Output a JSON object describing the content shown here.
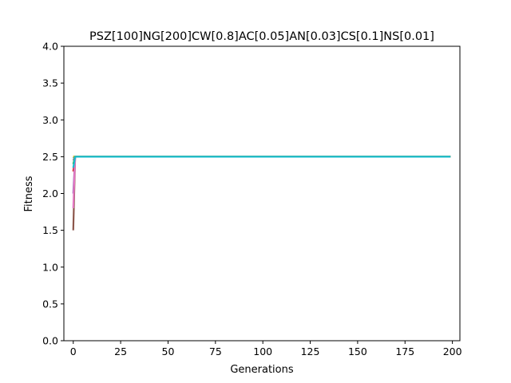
{
  "chart_data": {
    "type": "line",
    "title": "PSZ[100]NG[200]CW[0.8]AC[0.05]AN[0.03]CS[0.1]NS[0.01]",
    "xlabel": "Generations",
    "ylabel": "Fitness",
    "xlim": [
      -4.95,
      203.95
    ],
    "ylim": [
      0,
      4.0
    ],
    "xticks": [
      0,
      25,
      50,
      75,
      100,
      125,
      150,
      175,
      200
    ],
    "yticks": [
      0.0,
      0.5,
      1.0,
      1.5,
      2.0,
      2.5,
      3.0,
      3.5,
      4.0
    ],
    "xtick_labels": [
      "0",
      "25",
      "50",
      "75",
      "100",
      "125",
      "150",
      "175",
      "200"
    ],
    "ytick_labels": [
      "0.0",
      "0.5",
      "1.0",
      "1.5",
      "2.0",
      "2.5",
      "3.0",
      "3.5",
      "4.0"
    ],
    "grid": false,
    "legend": "none",
    "series": [
      {
        "color": "#1f77b4",
        "x": [
          0,
          1,
          199
        ],
        "y": [
          2.48,
          2.5,
          2.5
        ]
      },
      {
        "color": "#ff7f0e",
        "x": [
          0,
          1,
          199
        ],
        "y": [
          2.5,
          2.5,
          2.5
        ]
      },
      {
        "color": "#2ca02c",
        "x": [
          0,
          1,
          199
        ],
        "y": [
          2.4,
          2.5,
          2.5
        ]
      },
      {
        "color": "#d62728",
        "x": [
          0,
          1,
          199
        ],
        "y": [
          2.3,
          2.5,
          2.5
        ]
      },
      {
        "color": "#9467bd",
        "x": [
          0,
          1,
          199
        ],
        "y": [
          2.0,
          2.5,
          2.5
        ]
      },
      {
        "color": "#8c564b",
        "x": [
          0,
          1,
          199
        ],
        "y": [
          1.5,
          2.5,
          2.5
        ]
      },
      {
        "color": "#e377c2",
        "x": [
          0,
          1,
          199
        ],
        "y": [
          1.8,
          2.5,
          2.5
        ]
      },
      {
        "color": "#7f7f7f",
        "x": [
          0,
          1,
          199
        ],
        "y": [
          2.45,
          2.5,
          2.5
        ]
      },
      {
        "color": "#bcbd22",
        "x": [
          0,
          1,
          199
        ],
        "y": [
          2.5,
          2.5,
          2.5
        ]
      },
      {
        "color": "#17becf",
        "x": [
          0,
          1,
          199
        ],
        "y": [
          2.35,
          2.5,
          2.5
        ]
      }
    ]
  }
}
